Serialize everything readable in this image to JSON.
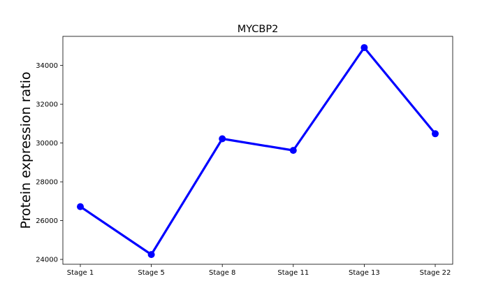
{
  "chart_data": {
    "type": "line",
    "title": "MYCBP2",
    "xlabel": "",
    "ylabel": "Protein expression ratio",
    "categories": [
      "Stage 1",
      "Stage 5",
      "Stage 8",
      "Stage 11",
      "Stage 13",
      "Stage 22"
    ],
    "series": [
      {
        "values": [
          26720,
          24250,
          30220,
          29620,
          34920,
          30480
        ]
      }
    ],
    "ylim": [
      23750,
      35500
    ],
    "yticks": [
      24000,
      26000,
      28000,
      30000,
      32000,
      34000
    ],
    "grid": false,
    "legend": "none",
    "color": "#0000ff"
  }
}
